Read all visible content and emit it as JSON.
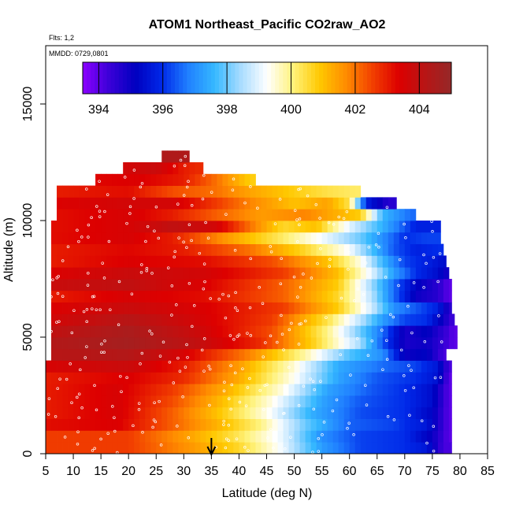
{
  "chart_data": {
    "type": "heatmap",
    "title": "ATOM1 Northeast_Pacific CO2raw_AO2",
    "header_lines": [
      "Flts: 1,2",
      "MMDD: 0729,0801"
    ],
    "xlabel": "Latitude (deg N)",
    "ylabel": "Altitude (m)",
    "xlim": [
      5,
      85
    ],
    "ylim": [
      0,
      17500
    ],
    "x_ticks": [
      "5",
      "10",
      "15",
      "20",
      "25",
      "30",
      "35",
      "40",
      "45",
      "50",
      "55",
      "60",
      "65",
      "70",
      "75",
      "80",
      "85"
    ],
    "y_ticks": [
      "0",
      "5000",
      "10000",
      "15000"
    ],
    "colorbar": {
      "range": [
        393.5,
        405.0
      ],
      "ticks": [
        "394",
        "396",
        "398",
        "400",
        "402",
        "404"
      ],
      "colors": [
        "#8B00FF",
        "#3B00D8",
        "#0000C0",
        "#0028E8",
        "#2080FF",
        "#35B8FF",
        "#A8DCFF",
        "#FFFFFF",
        "#FFF27A",
        "#FFC800",
        "#FF8C00",
        "#F24000",
        "#DD0000",
        "#B81515",
        "#952828"
      ]
    },
    "marker": {
      "x": 35,
      "note": "arrow at latitude 35"
    },
    "profiles": [
      {
        "alt": 250,
        "xmax": 78.5,
        "v": [
          [
            5,
            402.6
          ],
          [
            20,
            402.6
          ],
          [
            32,
            401.5
          ],
          [
            40,
            400.6
          ],
          [
            47,
            399.3
          ],
          [
            55,
            397.2
          ],
          [
            62,
            396.2
          ],
          [
            70,
            396.0
          ],
          [
            74,
            395.6
          ],
          [
            77,
            394.2
          ]
        ]
      },
      {
        "alt": 750,
        "xmax": 78.5,
        "v": [
          [
            5,
            402.6
          ],
          [
            20,
            402.6
          ],
          [
            32,
            401.3
          ],
          [
            40,
            400.3
          ],
          [
            48,
            399.0
          ],
          [
            55,
            397.0
          ],
          [
            62,
            396.2
          ],
          [
            70,
            396.0
          ],
          [
            75,
            395.0
          ],
          [
            78,
            394.0
          ]
        ]
      },
      {
        "alt": 1250,
        "xmax": 78.5,
        "v": [
          [
            5,
            403.2
          ],
          [
            18,
            403.4
          ],
          [
            28,
            402.2
          ],
          [
            36,
            401.2
          ],
          [
            44,
            400.0
          ],
          [
            52,
            398.0
          ],
          [
            60,
            396.5
          ],
          [
            68,
            396.2
          ],
          [
            74,
            395.6
          ],
          [
            78,
            394.0
          ]
        ]
      },
      {
        "alt": 1750,
        "xmax": 78.5,
        "v": [
          [
            5,
            403.0
          ],
          [
            18,
            403.5
          ],
          [
            28,
            402.2
          ],
          [
            36,
            401.0
          ],
          [
            45,
            399.4
          ],
          [
            53,
            397.5
          ],
          [
            62,
            396.3
          ],
          [
            70,
            396.0
          ],
          [
            75,
            395.2
          ],
          [
            78,
            394.0
          ]
        ]
      },
      {
        "alt": 2250,
        "xmax": 78.5,
        "v": [
          [
            5,
            403.0
          ],
          [
            18,
            403.5
          ],
          [
            28,
            402.4
          ],
          [
            36,
            401.2
          ],
          [
            46,
            399.4
          ],
          [
            55,
            397.3
          ],
          [
            62,
            396.4
          ],
          [
            70,
            396.0
          ],
          [
            75,
            395.4
          ],
          [
            78,
            394.0
          ]
        ]
      },
      {
        "alt": 2750,
        "xmax": 78.5,
        "v": [
          [
            5,
            403.0
          ],
          [
            18,
            403.5
          ],
          [
            28,
            402.6
          ],
          [
            38,
            401.2
          ],
          [
            48,
            399.4
          ],
          [
            56,
            397.3
          ],
          [
            64,
            396.4
          ],
          [
            70,
            396.0
          ],
          [
            75,
            395.4
          ],
          [
            78,
            394.0
          ]
        ]
      },
      {
        "alt": 3250,
        "xmax": 78.5,
        "v": [
          [
            5,
            403.0
          ],
          [
            20,
            403.4
          ],
          [
            30,
            402.8
          ],
          [
            40,
            401.3
          ],
          [
            50,
            399.3
          ],
          [
            58,
            397.3
          ],
          [
            65,
            396.4
          ],
          [
            72,
            396.0
          ],
          [
            76,
            395.5
          ],
          [
            78,
            394.0
          ]
        ]
      },
      {
        "alt": 3750,
        "xmax": 78.5,
        "v": [
          [
            5,
            403.5
          ],
          [
            20,
            403.8
          ],
          [
            30,
            403.0
          ],
          [
            40,
            401.5
          ],
          [
            50,
            399.5
          ],
          [
            58,
            397.4
          ],
          [
            66,
            396.6
          ],
          [
            72,
            396.2
          ],
          [
            76,
            395.6
          ],
          [
            78,
            394.2
          ]
        ]
      },
      {
        "alt": 4250,
        "xmax": 77.5,
        "v": [
          [
            6,
            404.2
          ],
          [
            20,
            404.3
          ],
          [
            30,
            403.5
          ],
          [
            42,
            401.8
          ],
          [
            52,
            399.8
          ],
          [
            60,
            397.8
          ],
          [
            66,
            397.0
          ],
          [
            70,
            395.0
          ],
          [
            74,
            395.2
          ],
          [
            77,
            394.2
          ]
        ]
      },
      {
        "alt": 4750,
        "xmax": 79.5,
        "v": [
          [
            6,
            404.3
          ],
          [
            20,
            404.6
          ],
          [
            32,
            404.0
          ],
          [
            44,
            402.8
          ],
          [
            54,
            400.6
          ],
          [
            62,
            398.4
          ],
          [
            66,
            396.4
          ],
          [
            70,
            394.8
          ],
          [
            74,
            395.0
          ],
          [
            79,
            394.0
          ]
        ]
      },
      {
        "alt": 5250,
        "xmax": 79.5,
        "v": [
          [
            6,
            404.0
          ],
          [
            20,
            404.5
          ],
          [
            32,
            403.8
          ],
          [
            46,
            402.4
          ],
          [
            56,
            400.0
          ],
          [
            62,
            398.0
          ],
          [
            66,
            396.6
          ],
          [
            70,
            394.8
          ],
          [
            74,
            395.2
          ],
          [
            79,
            394.0
          ]
        ]
      },
      {
        "alt": 5750,
        "xmax": 79.0,
        "v": [
          [
            6,
            403.6
          ],
          [
            20,
            404.2
          ],
          [
            32,
            403.6
          ],
          [
            46,
            402.6
          ],
          [
            56,
            400.4
          ],
          [
            62,
            398.6
          ],
          [
            66,
            397.2
          ],
          [
            70,
            396.2
          ],
          [
            74,
            396.0
          ],
          [
            79,
            394.2
          ]
        ]
      },
      {
        "alt": 6250,
        "xmax": 78.5,
        "v": [
          [
            6,
            403.4
          ],
          [
            20,
            403.8
          ],
          [
            34,
            403.4
          ],
          [
            48,
            402.6
          ],
          [
            58,
            400.8
          ],
          [
            64,
            398.8
          ],
          [
            68,
            397.0
          ],
          [
            72,
            396.4
          ],
          [
            76,
            395.8
          ],
          [
            78,
            394.6
          ]
        ]
      },
      {
        "alt": 6750,
        "xmax": 78.5,
        "v": [
          [
            6,
            403.0
          ],
          [
            20,
            403.5
          ],
          [
            34,
            403.2
          ],
          [
            48,
            402.2
          ],
          [
            58,
            400.6
          ],
          [
            64,
            398.6
          ],
          [
            68,
            396.6
          ],
          [
            72,
            395.0
          ],
          [
            76,
            394.6
          ],
          [
            78,
            394.0
          ]
        ]
      },
      {
        "alt": 7250,
        "xmax": 78.5,
        "v": [
          [
            6,
            403.8
          ],
          [
            20,
            404.0
          ],
          [
            34,
            403.4
          ],
          [
            48,
            402.2
          ],
          [
            58,
            400.8
          ],
          [
            64,
            398.4
          ],
          [
            68,
            396.6
          ],
          [
            72,
            395.2
          ],
          [
            76,
            394.6
          ],
          [
            78,
            394.0
          ]
        ]
      },
      {
        "alt": 7750,
        "xmax": 78.0,
        "v": [
          [
            6,
            403.4
          ],
          [
            20,
            403.8
          ],
          [
            34,
            403.6
          ],
          [
            48,
            402.6
          ],
          [
            58,
            401.0
          ],
          [
            64,
            399.0
          ],
          [
            68,
            397.2
          ],
          [
            72,
            396.0
          ],
          [
            76,
            395.4
          ],
          [
            78,
            394.8
          ]
        ]
      },
      {
        "alt": 8250,
        "xmax": 77.5,
        "v": [
          [
            6,
            403.0
          ],
          [
            20,
            403.4
          ],
          [
            34,
            403.2
          ],
          [
            46,
            402.4
          ],
          [
            56,
            401.0
          ],
          [
            62,
            399.4
          ],
          [
            66,
            397.6
          ],
          [
            70,
            396.2
          ],
          [
            74,
            395.8
          ],
          [
            77,
            395.4
          ]
        ]
      },
      {
        "alt": 8750,
        "xmax": 77.0,
        "v": [
          [
            6,
            403.0
          ],
          [
            20,
            403.3
          ],
          [
            30,
            403.0
          ],
          [
            42,
            402.0
          ],
          [
            52,
            400.6
          ],
          [
            60,
            399.2
          ],
          [
            64,
            397.8
          ],
          [
            68,
            396.4
          ],
          [
            72,
            395.8
          ],
          [
            76,
            396.0
          ]
        ]
      },
      {
        "alt": 9250,
        "xmax": 76.5,
        "v": [
          [
            6,
            403.2
          ],
          [
            20,
            403.5
          ],
          [
            28,
            403.0
          ],
          [
            38,
            401.5
          ],
          [
            48,
            400.2
          ],
          [
            56,
            399.0
          ],
          [
            62,
            398.0
          ],
          [
            66,
            397.0
          ],
          [
            70,
            396.0
          ],
          [
            74,
            396.2
          ]
        ]
      },
      {
        "alt": 9750,
        "xmax": 76.5,
        "v": [
          [
            7,
            403.2
          ],
          [
            20,
            403.5
          ],
          [
            28,
            404.0
          ],
          [
            36,
            403.6
          ],
          [
            42,
            402.0
          ],
          [
            48,
            400.6
          ],
          [
            54,
            401.0
          ],
          [
            60,
            399.0
          ],
          [
            66,
            397.5
          ],
          [
            72,
            395.8
          ]
        ]
      },
      {
        "alt": 10250,
        "xmax": 72.0,
        "v": [
          [
            7,
            403.2
          ],
          [
            20,
            403.5
          ],
          [
            28,
            403.0
          ],
          [
            36,
            402.2
          ],
          [
            44,
            401.5
          ],
          [
            52,
            401.8
          ],
          [
            58,
            401.2
          ],
          [
            62,
            400.8
          ],
          [
            66,
            397.6
          ],
          [
            71,
            396.6
          ]
        ]
      },
      {
        "alt": 10750,
        "xmax": 68.5,
        "v": [
          [
            7,
            403.4
          ],
          [
            20,
            403.6
          ],
          [
            28,
            403.6
          ],
          [
            36,
            402.6
          ],
          [
            42,
            401.8
          ],
          [
            50,
            401.0
          ],
          [
            56,
            401.4
          ],
          [
            60,
            400.4
          ],
          [
            63,
            395.8
          ],
          [
            67,
            394.6
          ]
        ]
      },
      {
        "alt": 11250,
        "xmax": 62.0,
        "v": [
          [
            7,
            403.0
          ],
          [
            20,
            403.2
          ],
          [
            28,
            402.4
          ],
          [
            36,
            402.0
          ],
          [
            42,
            401.4
          ],
          [
            50,
            400.8
          ],
          [
            56,
            400.4
          ],
          [
            61,
            400.2
          ]
        ]
      },
      {
        "alt": 11750,
        "xmax": 43.0,
        "v": [
          [
            14,
            403.3
          ],
          [
            22,
            403.4
          ],
          [
            30,
            403.0
          ],
          [
            36,
            402.0
          ],
          [
            40,
            401.2
          ],
          [
            42,
            400.8
          ]
        ]
      },
      {
        "alt": 12250,
        "xmax": 33.5,
        "v": [
          [
            19,
            403.6
          ],
          [
            25,
            403.8
          ],
          [
            30,
            403.0
          ],
          [
            33,
            402.8
          ]
        ]
      },
      {
        "alt": 12750,
        "xmax": 31.0,
        "v": [
          [
            26,
            404.4
          ],
          [
            30,
            404.4
          ]
        ]
      }
    ],
    "profile_xmin": {
      "250": 5.0,
      "750": 5.0,
      "1250": 5.0,
      "1750": 5.0,
      "2250": 5.0,
      "2750": 5.0,
      "3250": 5.0,
      "3750": 5.0,
      "4250": 6.0,
      "4750": 6.0,
      "5250": 6.0,
      "5750": 6.0,
      "6250": 6.0,
      "6750": 6.0,
      "7250": 6.0,
      "7750": 6.0,
      "8250": 6.0,
      "8750": 6.0,
      "9250": 6.0,
      "9750": 6.0,
      "10250": 7.0,
      "10750": 7.0,
      "11250": 7.0,
      "11750": 14.0,
      "12250": 19.0,
      "12750": 26.0
    }
  }
}
